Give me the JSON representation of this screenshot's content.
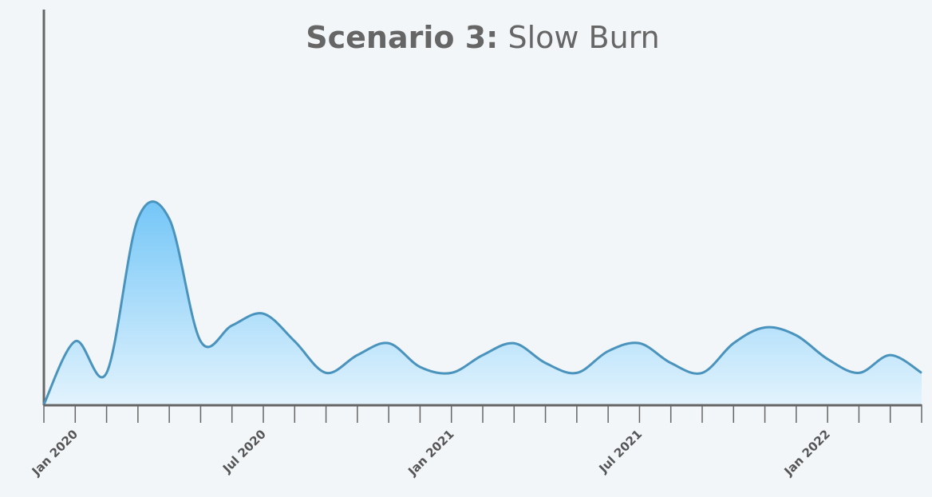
{
  "chart_data": {
    "type": "area",
    "title": [
      "Scenario 3:",
      "Slow Burn"
    ],
    "categories": [
      null,
      "Jan 2020",
      null,
      null,
      null,
      null,
      null,
      "Jul 2020",
      null,
      null,
      null,
      null,
      null,
      "Jan 2021",
      null,
      null,
      null,
      null,
      null,
      "Jul 2021",
      null,
      null,
      null,
      null,
      null,
      "Jan 2022",
      null,
      null,
      null
    ],
    "values": [
      0,
      16,
      8,
      47,
      47,
      16,
      20,
      23,
      16,
      8,
      12.5,
      15.5,
      9.5,
      8,
      12.5,
      15.5,
      10.5,
      8,
      13.5,
      15.5,
      10.5,
      8,
      15.5,
      19.5,
      17.5,
      11.5,
      8,
      12.5,
      8
    ],
    "ylim": [
      0,
      100
    ],
    "color": "#4a93bd",
    "fill_colors": [
      "#74c6f7",
      "#e2f3fd"
    ]
  }
}
